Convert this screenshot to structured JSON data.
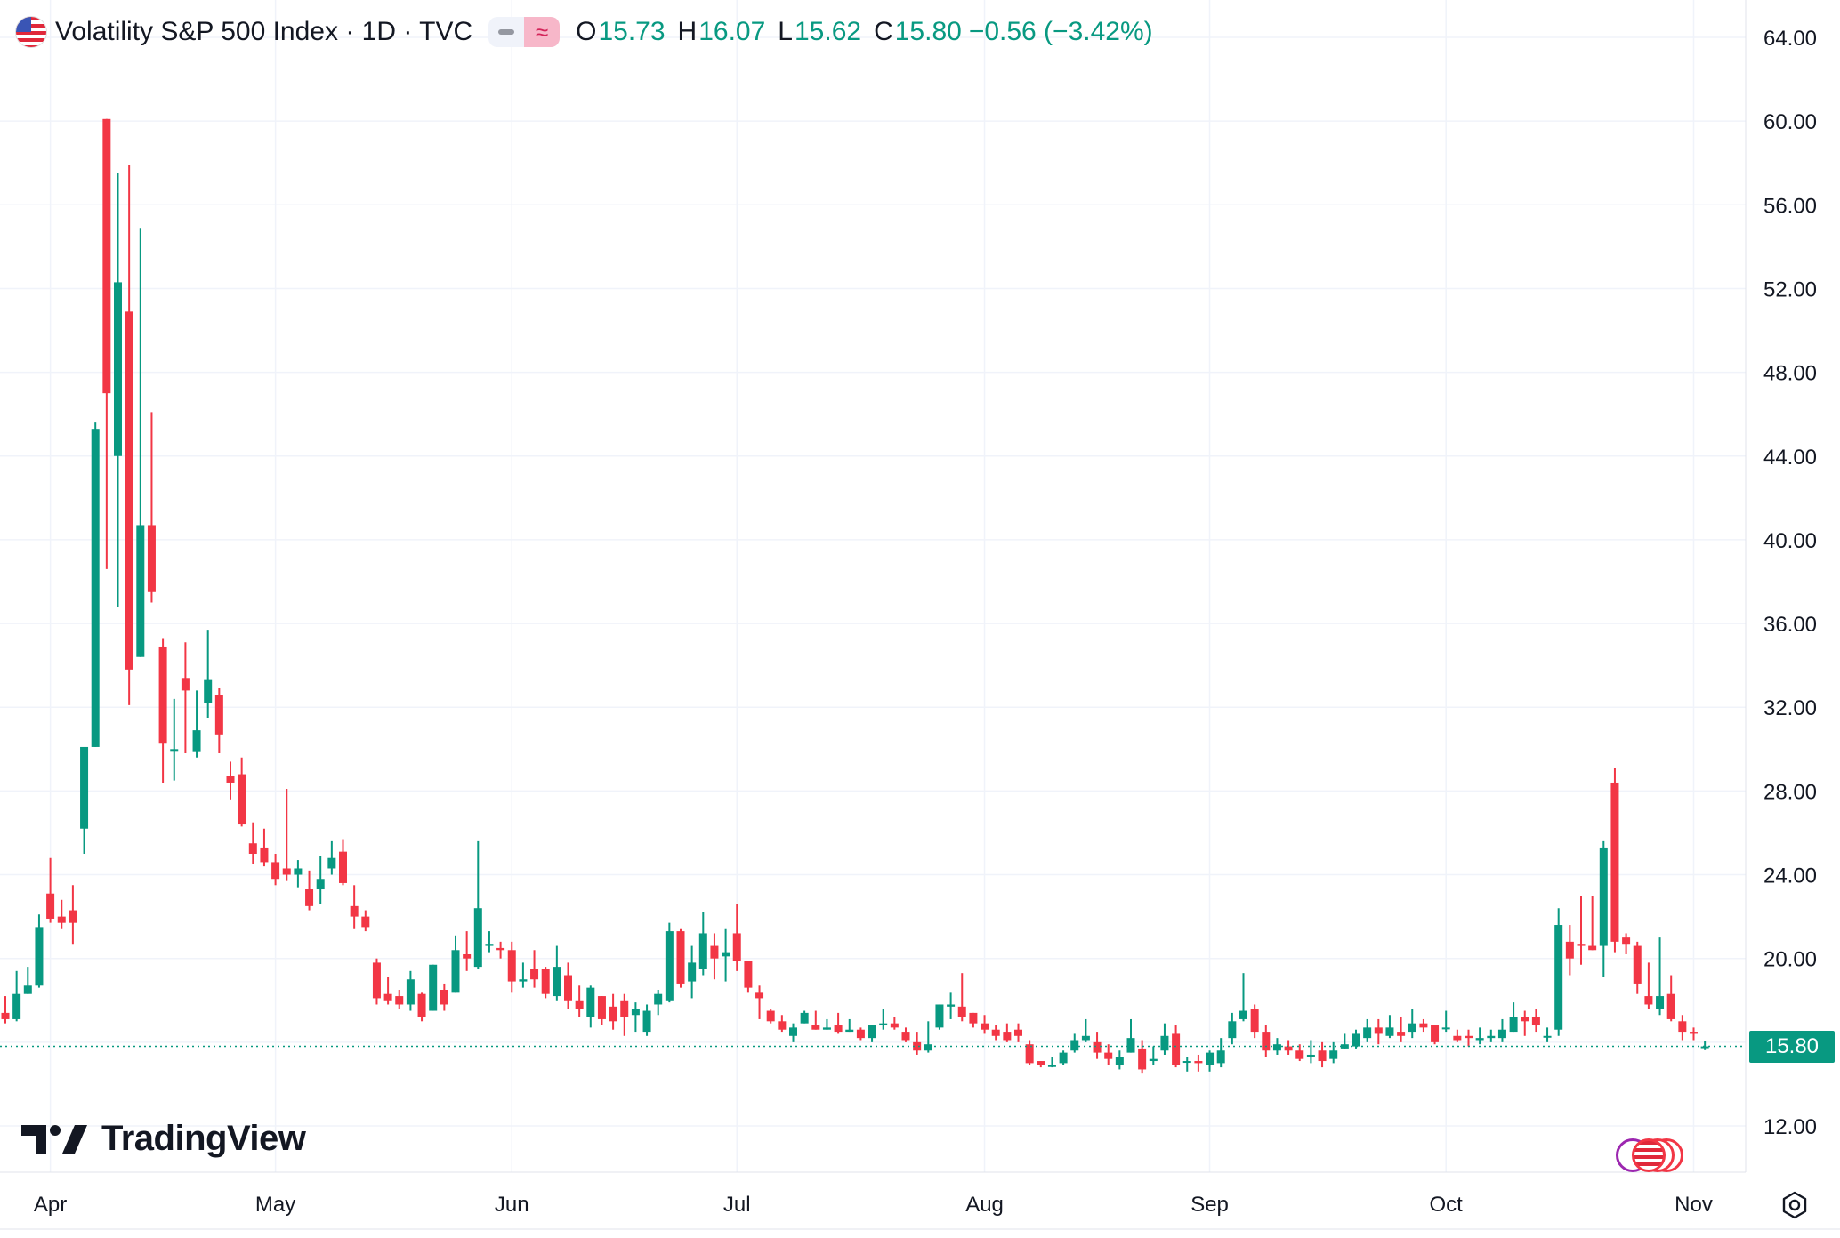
{
  "legend": {
    "title": "Volatility S&P 500 Index · 1D · TVC",
    "open_label": "O",
    "open": "15.73",
    "high_label": "H",
    "high": "16.07",
    "low_label": "L",
    "low": "15.62",
    "close_label": "C",
    "close": "15.80",
    "change": "−0.56 (−3.42%)",
    "flag_icon": "us-flag-icon",
    "wave_symbol": "≈"
  },
  "branding": {
    "logo_text": "TradingView"
  },
  "last_price_label": "15.80",
  "colors": {
    "up": "#089981",
    "down": "#f23645",
    "grid": "#f0f3fa",
    "text": "#131722"
  },
  "chart_data": {
    "type": "candlestick",
    "title": "",
    "xlabel": "",
    "ylabel": "",
    "ylim": [
      9.5,
      65.5
    ],
    "grid": true,
    "y_ticks": [
      "12.00",
      "16.00",
      "20.00",
      "24.00",
      "28.00",
      "32.00",
      "36.00",
      "40.00",
      "44.00",
      "48.00",
      "52.00",
      "56.00",
      "60.00",
      "64.00"
    ],
    "x_ticks": [
      {
        "label": "Apr",
        "day": 4
      },
      {
        "label": "May",
        "day": 24
      },
      {
        "label": "Jun",
        "day": 45
      },
      {
        "label": "Jul",
        "day": 65
      },
      {
        "label": "Aug",
        "day": 87
      },
      {
        "label": "Sep",
        "day": 107
      },
      {
        "label": "Oct",
        "day": 128
      },
      {
        "label": "Nov",
        "day": 150
      }
    ],
    "last_close": 15.8,
    "candles": [
      [
        17.4,
        17.1,
        18.2,
        16.9
      ],
      [
        17.1,
        18.3,
        19.4,
        17.0
      ],
      [
        18.3,
        18.7,
        19.6,
        18.3
      ],
      [
        18.7,
        21.5,
        22.1,
        18.6
      ],
      [
        23.1,
        21.9,
        24.8,
        21.7
      ],
      [
        22.0,
        21.7,
        22.8,
        21.4
      ],
      [
        22.3,
        21.7,
        23.5,
        20.7
      ],
      [
        26.2,
        30.1,
        30.1,
        25.0
      ],
      [
        30.1,
        45.3,
        45.6,
        30.1
      ],
      [
        60.1,
        47.0,
        60.1,
        38.6
      ],
      [
        44.0,
        52.3,
        57.5,
        36.8
      ],
      [
        50.9,
        33.8,
        57.9,
        32.1
      ],
      [
        34.4,
        40.7,
        54.9,
        34.4
      ],
      [
        40.7,
        37.5,
        46.1,
        37.0
      ],
      [
        34.9,
        30.3,
        35.3,
        28.4
      ],
      [
        30.0,
        30.0,
        32.4,
        28.5
      ],
      [
        33.4,
        32.8,
        35.1,
        29.8
      ],
      [
        29.9,
        30.9,
        32.8,
        29.6
      ],
      [
        32.2,
        33.3,
        35.7,
        31.5
      ],
      [
        32.6,
        30.7,
        32.9,
        29.8
      ],
      [
        28.7,
        28.4,
        29.4,
        27.6
      ],
      [
        28.8,
        26.4,
        29.6,
        26.3
      ],
      [
        25.5,
        25.0,
        26.5,
        24.5
      ],
      [
        25.3,
        24.6,
        26.2,
        24.4
      ],
      [
        24.6,
        23.8,
        25.0,
        23.5
      ],
      [
        24.3,
        24.0,
        28.1,
        23.7
      ],
      [
        24.0,
        24.3,
        24.7,
        23.4
      ],
      [
        23.3,
        22.5,
        24.2,
        22.3
      ],
      [
        23.3,
        23.8,
        24.9,
        22.6
      ],
      [
        24.3,
        24.8,
        25.6,
        24.0
      ],
      [
        25.1,
        23.6,
        25.7,
        23.5
      ],
      [
        22.5,
        22.0,
        23.5,
        21.4
      ],
      [
        22.0,
        21.5,
        22.3,
        21.3
      ],
      [
        19.8,
        18.1,
        20.0,
        17.8
      ],
      [
        18.3,
        18.0,
        19.1,
        17.8
      ],
      [
        18.2,
        17.8,
        18.5,
        17.6
      ],
      [
        17.8,
        19.0,
        19.4,
        17.5
      ],
      [
        18.3,
        17.2,
        18.4,
        17.0
      ],
      [
        17.5,
        19.7,
        19.7,
        17.5
      ],
      [
        18.5,
        17.8,
        18.8,
        17.5
      ],
      [
        18.4,
        20.4,
        21.1,
        18.4
      ],
      [
        20.2,
        20.0,
        21.3,
        19.4
      ],
      [
        19.6,
        22.4,
        25.6,
        19.5
      ],
      [
        20.6,
        20.7,
        21.3,
        20.3
      ],
      [
        20.5,
        20.4,
        20.8,
        20.0
      ],
      [
        20.4,
        18.9,
        20.8,
        18.4
      ],
      [
        18.9,
        19.0,
        19.8,
        18.6
      ],
      [
        19.5,
        19.0,
        20.4,
        18.6
      ],
      [
        19.5,
        18.3,
        19.6,
        18.1
      ],
      [
        18.2,
        19.6,
        20.6,
        18.0
      ],
      [
        19.2,
        18.0,
        19.8,
        17.6
      ],
      [
        18.0,
        17.6,
        18.7,
        17.2
      ],
      [
        17.2,
        18.6,
        18.7,
        16.7
      ],
      [
        18.2,
        17.1,
        18.2,
        16.8
      ],
      [
        17.7,
        17.0,
        18.3,
        16.6
      ],
      [
        18.0,
        17.2,
        18.3,
        16.3
      ],
      [
        17.3,
        17.6,
        17.9,
        16.5
      ],
      [
        16.5,
        17.5,
        17.8,
        16.3
      ],
      [
        17.8,
        18.3,
        18.5,
        17.3
      ],
      [
        18.0,
        21.3,
        21.7,
        17.9
      ],
      [
        21.3,
        18.8,
        21.4,
        18.6
      ],
      [
        18.9,
        19.8,
        20.6,
        18.1
      ],
      [
        19.5,
        21.2,
        22.2,
        19.2
      ],
      [
        20.6,
        20.0,
        21.2,
        19.0
      ],
      [
        20.1,
        20.3,
        21.4,
        18.9
      ],
      [
        21.2,
        19.9,
        22.6,
        19.4
      ],
      [
        19.9,
        18.6,
        19.9,
        18.4
      ],
      [
        18.4,
        18.1,
        18.7,
        17.1
      ],
      [
        17.5,
        17.0,
        17.6,
        16.9
      ],
      [
        17.0,
        16.6,
        17.3,
        16.5
      ],
      [
        16.3,
        16.7,
        16.9,
        16.0
      ],
      [
        16.9,
        17.4,
        17.5,
        16.9
      ],
      [
        16.8,
        16.6,
        17.5,
        16.6
      ],
      [
        16.6,
        16.7,
        17.1,
        16.6
      ],
      [
        16.8,
        16.5,
        17.4,
        16.4
      ],
      [
        16.5,
        16.6,
        17.1,
        16.5
      ],
      [
        16.6,
        16.2,
        16.7,
        16.1
      ],
      [
        16.2,
        16.8,
        16.8,
        16.0
      ],
      [
        16.8,
        16.9,
        17.6,
        16.6
      ],
      [
        16.9,
        16.7,
        17.2,
        16.6
      ],
      [
        16.5,
        16.1,
        16.7,
        16.0
      ],
      [
        16.0,
        15.6,
        16.5,
        15.4
      ],
      [
        15.6,
        15.9,
        17.0,
        15.5
      ],
      [
        16.7,
        17.8,
        17.8,
        16.6
      ],
      [
        17.7,
        17.8,
        18.4,
        17.1
      ],
      [
        17.7,
        17.2,
        19.3,
        17.0
      ],
      [
        17.4,
        16.9,
        17.4,
        16.7
      ],
      [
        16.9,
        16.6,
        17.3,
        16.4
      ],
      [
        16.6,
        16.3,
        16.8,
        16.1
      ],
      [
        16.5,
        16.1,
        16.9,
        16.0
      ],
      [
        16.6,
        16.3,
        16.9,
        16.0
      ],
      [
        15.9,
        15.0,
        16.1,
        14.9
      ],
      [
        15.1,
        14.9,
        15.1,
        14.8
      ],
      [
        14.9,
        14.9,
        15.3,
        14.8
      ],
      [
        15.0,
        15.5,
        15.6,
        14.9
      ],
      [
        15.6,
        16.1,
        16.4,
        15.5
      ],
      [
        16.1,
        16.3,
        17.1,
        16.0
      ],
      [
        16.0,
        15.5,
        16.5,
        15.2
      ],
      [
        15.5,
        15.2,
        15.9,
        14.9
      ],
      [
        14.9,
        15.3,
        15.6,
        14.7
      ],
      [
        15.5,
        16.2,
        17.1,
        15.5
      ],
      [
        15.7,
        14.7,
        16.1,
        14.5
      ],
      [
        15.1,
        15.2,
        15.8,
        14.9
      ],
      [
        15.6,
        16.3,
        16.9,
        15.4
      ],
      [
        16.4,
        14.9,
        16.8,
        14.8
      ],
      [
        15.1,
        15.1,
        15.3,
        14.6
      ],
      [
        15.1,
        15.0,
        15.4,
        14.6
      ],
      [
        14.9,
        15.5,
        15.6,
        14.6
      ],
      [
        15.0,
        15.6,
        16.2,
        14.8
      ],
      [
        16.2,
        17.0,
        17.4,
        15.9
      ],
      [
        17.1,
        17.5,
        19.3,
        17.0
      ],
      [
        17.6,
        16.5,
        17.8,
        16.2
      ],
      [
        16.5,
        15.6,
        16.8,
        15.3
      ],
      [
        15.6,
        15.9,
        16.2,
        15.4
      ],
      [
        15.8,
        15.6,
        16.1,
        15.4
      ],
      [
        15.6,
        15.2,
        15.9,
        15.1
      ],
      [
        15.3,
        15.4,
        16.1,
        15.0
      ],
      [
        15.6,
        15.1,
        16.0,
        14.8
      ],
      [
        15.2,
        15.6,
        16.0,
        15.0
      ],
      [
        15.7,
        15.9,
        16.4,
        15.7
      ],
      [
        15.8,
        16.4,
        16.6,
        15.7
      ],
      [
        16.2,
        16.7,
        17.1,
        16.0
      ],
      [
        16.7,
        16.4,
        17.1,
        15.9
      ],
      [
        16.3,
        16.7,
        17.3,
        16.2
      ],
      [
        16.5,
        16.3,
        17.2,
        16.0
      ],
      [
        16.5,
        16.9,
        17.6,
        16.2
      ],
      [
        16.9,
        16.7,
        17.1,
        16.5
      ],
      [
        16.8,
        16.0,
        16.8,
        15.9
      ],
      [
        16.7,
        16.7,
        17.5,
        16.5
      ],
      [
        16.3,
        16.1,
        16.6,
        16.0
      ],
      [
        16.3,
        16.2,
        16.6,
        15.8
      ],
      [
        16.1,
        16.2,
        16.7,
        15.9
      ],
      [
        16.2,
        16.3,
        16.6,
        16.0
      ],
      [
        16.2,
        16.6,
        17.1,
        16.0
      ],
      [
        16.5,
        17.2,
        17.9,
        16.5
      ],
      [
        17.2,
        17.0,
        17.5,
        16.3
      ],
      [
        17.2,
        16.8,
        17.6,
        16.5
      ],
      [
        16.3,
        16.3,
        16.7,
        16.0
      ],
      [
        16.6,
        21.6,
        22.4,
        16.3
      ],
      [
        20.8,
        20.0,
        21.6,
        19.2
      ],
      [
        20.7,
        20.6,
        23.0,
        19.7
      ],
      [
        20.6,
        20.4,
        23.0,
        20.4
      ],
      [
        20.6,
        25.3,
        25.6,
        19.1
      ],
      [
        28.4,
        20.8,
        29.1,
        20.3
      ],
      [
        21.0,
        20.7,
        21.2,
        20.2
      ],
      [
        20.6,
        18.8,
        20.8,
        18.3
      ],
      [
        18.2,
        17.8,
        19.8,
        17.6
      ],
      [
        17.6,
        18.2,
        21.0,
        17.3
      ],
      [
        18.3,
        17.1,
        19.2,
        17.0
      ],
      [
        17.0,
        16.5,
        17.3,
        16.1
      ],
      [
        16.5,
        16.4,
        16.7,
        16.1
      ],
      [
        15.73,
        15.8,
        16.07,
        15.62
      ]
    ]
  }
}
